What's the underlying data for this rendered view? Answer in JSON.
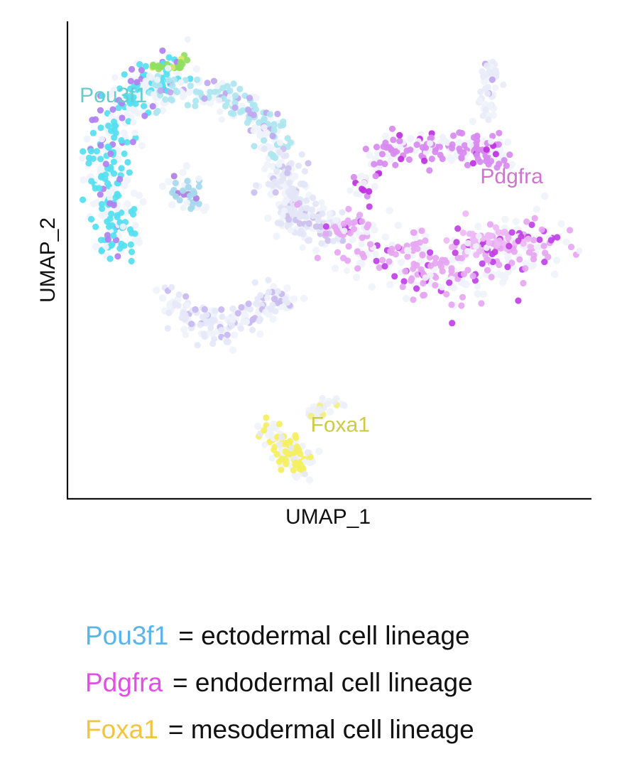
{
  "chart_data": {
    "type": "scatter",
    "xlabel": "UMAP_1",
    "ylabel": "UMAP_2",
    "xlim": [
      0,
      100
    ],
    "ylim": [
      0,
      100
    ],
    "grid": false,
    "background_color": "#f0f2fa",
    "labels": [
      {
        "text": "Pou3f1",
        "x": 7,
        "y": 86,
        "color": "#66cccc"
      },
      {
        "text": "Pdgfra",
        "x": 86,
        "y": 68,
        "color": "#cc77cc"
      },
      {
        "text": "Foxa1",
        "x": 52,
        "y": 13,
        "color": "#cccc44"
      }
    ],
    "clusters": [
      {
        "name": "Pou3f1",
        "color": "#55e0f0",
        "mixColor": "#b080f0",
        "count": 230,
        "path": [
          [
            18,
            95
          ],
          [
            14,
            90
          ],
          [
            9,
            84
          ],
          [
            6,
            76
          ],
          [
            6,
            68
          ],
          [
            8,
            60
          ],
          [
            8,
            53
          ]
        ],
        "spread": 2.4
      },
      {
        "name": "Pou3f1",
        "color": "#aee6f0",
        "mixColor": "#c0a8f0",
        "count": 140,
        "path": [
          [
            15,
            88
          ],
          [
            22,
            89
          ],
          [
            28,
            88
          ],
          [
            33,
            85
          ],
          [
            38,
            80
          ],
          [
            40,
            74
          ]
        ],
        "spread": 1.6
      },
      {
        "name": "Pou3f1",
        "color": "#a8d8ee",
        "mixColor": "#b080e0",
        "count": 40,
        "path": [
          [
            20,
            68
          ],
          [
            22,
            65
          ],
          [
            23,
            64
          ]
        ],
        "spread": 1.6
      },
      {
        "name": "Pou3f1",
        "color": "#e4e6f6",
        "mixColor": "#ccc0ee",
        "count": 150,
        "path": [
          [
            40,
            74
          ],
          [
            41,
            67
          ],
          [
            43,
            61
          ],
          [
            47,
            58
          ],
          [
            51,
            58
          ]
        ],
        "spread": 2.2
      },
      {
        "name": "Pdgfra",
        "color": "#e6a6f2",
        "mixColor": "#c040e8",
        "count": 230,
        "path": [
          [
            52,
            58
          ],
          [
            57,
            56
          ],
          [
            62,
            53
          ],
          [
            67,
            50
          ],
          [
            72,
            47
          ],
          [
            77,
            49
          ],
          [
            82,
            51
          ],
          [
            88,
            54
          ],
          [
            95,
            54
          ]
        ],
        "spread": 3.4
      },
      {
        "name": "Pdgfra",
        "color": "#d88af0",
        "mixColor": "#c030e0",
        "count": 140,
        "path": [
          [
            56,
            66
          ],
          [
            59,
            72
          ],
          [
            63,
            76
          ],
          [
            69,
            76
          ],
          [
            74,
            76
          ],
          [
            80,
            76
          ],
          [
            84,
            74
          ]
        ],
        "spread": 1.7
      },
      {
        "name": "Pdgfra",
        "color": "#eeb8f6",
        "mixColor": "#c040e0",
        "count": 60,
        "path": [
          [
            76,
            54
          ],
          [
            79,
            55
          ],
          [
            84,
            56
          ],
          [
            90,
            54
          ]
        ],
        "spread": 1.7
      },
      {
        "name": "Pdgfra",
        "color": "#e8eaf8",
        "mixColor": "#c0a8f0",
        "count": 35,
        "path": [
          [
            81,
            83
          ],
          [
            81,
            87
          ],
          [
            82,
            91
          ],
          [
            82,
            95
          ]
        ],
        "spread": 0.9
      },
      {
        "name": "Pou3f1",
        "color": "#e6e8f8",
        "mixColor": "#c8b8f0",
        "count": 130,
        "path": [
          [
            19,
            42
          ],
          [
            22,
            38
          ],
          [
            27,
            35
          ],
          [
            32,
            38
          ],
          [
            37,
            41
          ],
          [
            41,
            43
          ]
        ],
        "spread": 1.9
      },
      {
        "name": "Foxa1",
        "color": "#f4f060",
        "mixColor": "#e8e8f4",
        "count": 85,
        "path": [
          [
            38,
            15
          ],
          [
            40,
            11
          ],
          [
            42,
            8
          ],
          [
            45,
            5
          ]
        ],
        "spread": 1.5
      },
      {
        "name": "Foxa1",
        "color": "#eceef8",
        "mixColor": "#f0f080",
        "count": 25,
        "path": [
          [
            46,
            17
          ],
          [
            48,
            18
          ],
          [
            52,
            20
          ]
        ],
        "spread": 0.9
      },
      {
        "name": "Pou3f1",
        "color": "#90e060",
        "mixColor": "#d8e860",
        "count": 22,
        "path": [
          [
            15,
            93
          ],
          [
            18,
            94
          ],
          [
            22,
            95
          ]
        ],
        "spread": 0.7
      }
    ]
  },
  "legend": {
    "rows": [
      {
        "gene": "Pou3f1",
        "gene_color": "#5ab4e8",
        "text": "= ectodermal cell lineage"
      },
      {
        "gene": "Pdgfra",
        "gene_color": "#e34fe6",
        "text": "= endodermal cell lineage"
      },
      {
        "gene": "Foxa1",
        "gene_color": "#f1c442",
        "text": "= mesodermal cell lineage"
      }
    ]
  }
}
